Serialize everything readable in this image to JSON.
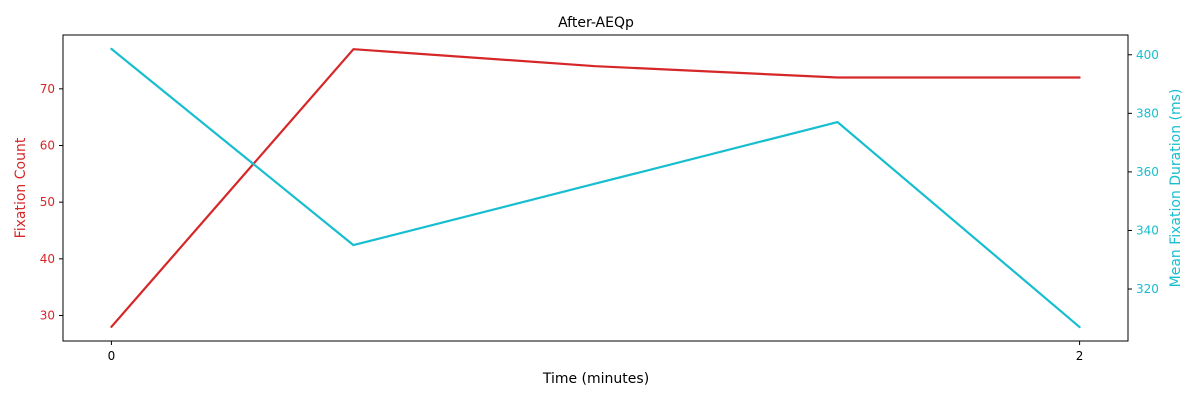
{
  "chart_data": {
    "type": "line",
    "title": "After-AEQp",
    "xlabel": "Time (minutes)",
    "ylabel_left": "Fixation Count",
    "ylabel_right": "Mean Fixation Duration (ms)",
    "x": [
      0,
      0.5,
      1,
      1.5,
      2
    ],
    "xlim": [
      -0.1,
      2.1
    ],
    "xticks": [
      0,
      2
    ],
    "xtick_labels": [
      "0",
      "2"
    ],
    "series": [
      {
        "name": "Fixation Count",
        "axis": "left",
        "color": "#d62728",
        "values": [
          28,
          77,
          74,
          72,
          72
        ]
      },
      {
        "name": "Mean Fixation Duration (ms)",
        "axis": "right",
        "color": "#17becf",
        "values": [
          402,
          335,
          356,
          377,
          307
        ]
      }
    ],
    "ylim_left": [
      25.5,
      79.5
    ],
    "yticks_left": [
      30,
      40,
      50,
      60,
      70
    ],
    "ylim_right": [
      302.25,
      406.75
    ],
    "yticks_right": [
      320,
      340,
      360,
      380,
      400
    ],
    "left_color": "#d62728",
    "right_color": "#17becf",
    "grid": false,
    "legend": "none"
  }
}
